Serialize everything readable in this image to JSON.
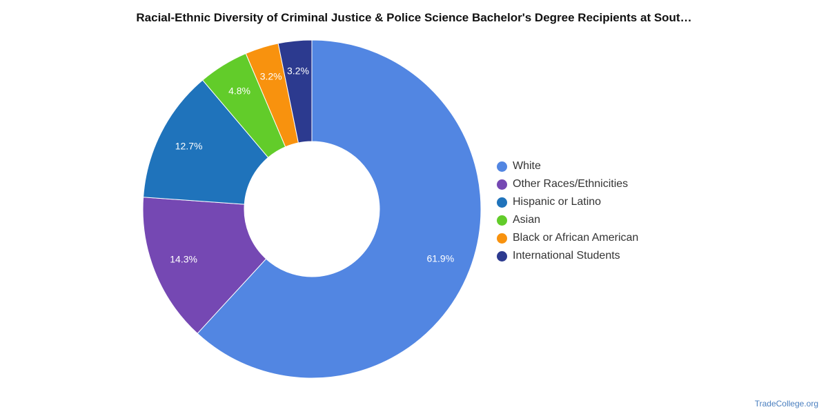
{
  "chart_data": {
    "type": "pie",
    "donut": true,
    "title": "Racial-Ethnic Diversity of Criminal Justice & Police Science Bachelor's Degree Recipients at Sout…",
    "categories": [
      "White",
      "Other Races/Ethnicities",
      "Hispanic or Latino",
      "Asian",
      "Black or African American",
      "International Students"
    ],
    "values": [
      61.9,
      14.3,
      12.7,
      4.8,
      3.2,
      3.2
    ],
    "labels": [
      "61.9%",
      "14.3%",
      "12.7%",
      "4.8%",
      "3.2%",
      "3.2%"
    ],
    "colors": [
      "#5286e2",
      "#7548b3",
      "#1f73bb",
      "#62cc2a",
      "#f8920e",
      "#2c3a8f"
    ],
    "legend_position": "right"
  },
  "credit": "TradeCollege.org"
}
